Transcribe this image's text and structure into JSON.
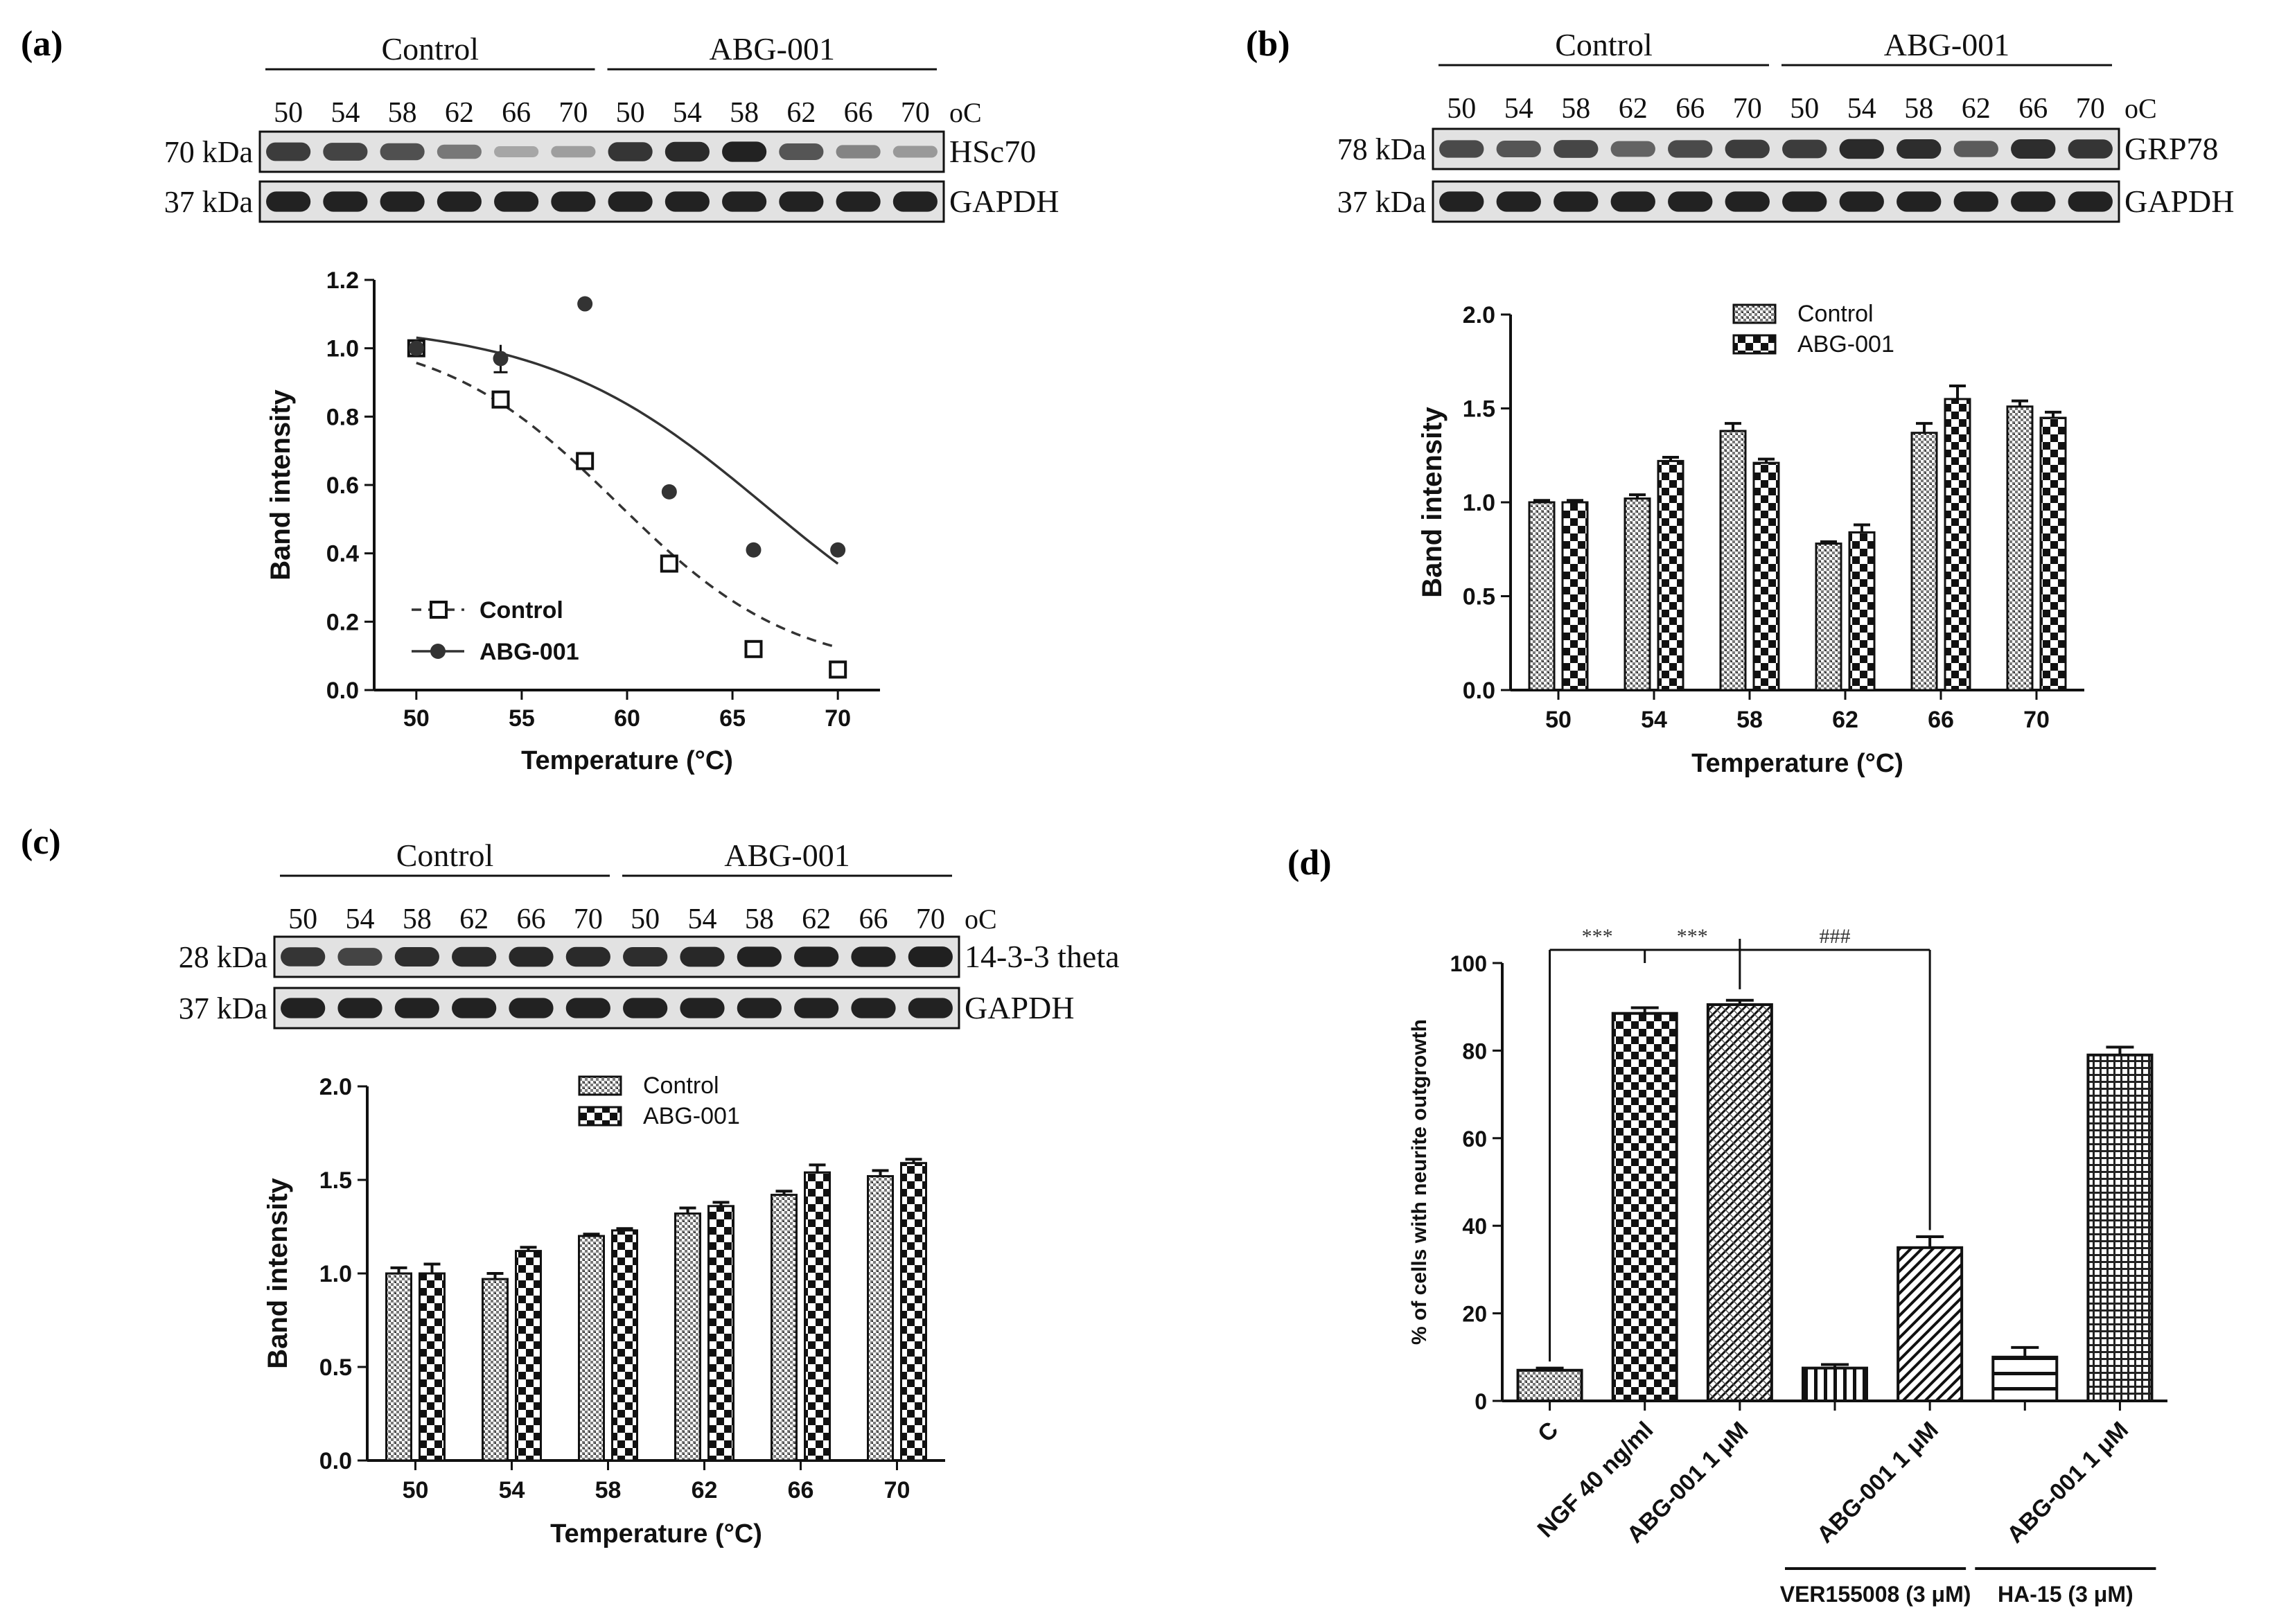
{
  "colors": {
    "ink": "#111111",
    "blot_bg": "#e2e2e2",
    "band": "#1a1a1a",
    "paper": "#ffffff"
  },
  "blots": [
    {
      "panel": "(a)",
      "group_labels": [
        "Control",
        "ABG-001"
      ],
      "temps": [
        "50",
        "54",
        "58",
        "62",
        "66",
        "70",
        "50",
        "54",
        "58",
        "62",
        "66",
        "70"
      ],
      "unit": "oC",
      "rows": [
        {
          "kda": "70 kDa",
          "protein": "HSc70",
          "intensity": [
            0.8,
            0.75,
            0.68,
            0.45,
            0.18,
            0.22,
            0.85,
            0.9,
            0.95,
            0.65,
            0.38,
            0.25
          ]
        },
        {
          "kda": "37 kDa",
          "protein": "GAPDH",
          "intensity": [
            0.95,
            0.95,
            0.95,
            0.95,
            0.95,
            0.95,
            0.95,
            0.95,
            0.95,
            0.95,
            0.95,
            0.95
          ]
        }
      ]
    },
    {
      "panel": "(b)",
      "group_labels": [
        "Control",
        "ABG-001"
      ],
      "temps": [
        "50",
        "54",
        "58",
        "62",
        "66",
        "70",
        "50",
        "54",
        "58",
        "62",
        "66",
        "70"
      ],
      "unit": "oC",
      "rows": [
        {
          "kda": "78 kDa",
          "protein": "GRP78",
          "intensity": [
            0.72,
            0.65,
            0.74,
            0.58,
            0.72,
            0.8,
            0.8,
            0.9,
            0.88,
            0.62,
            0.88,
            0.85
          ]
        },
        {
          "kda": "37 kDa",
          "protein": "GAPDH",
          "intensity": [
            0.95,
            0.95,
            0.95,
            0.95,
            0.95,
            0.95,
            0.95,
            0.95,
            0.95,
            0.95,
            0.95,
            0.95
          ]
        }
      ]
    },
    {
      "panel": "(c)",
      "group_labels": [
        "Control",
        "ABG-001"
      ],
      "temps": [
        "50",
        "54",
        "58",
        "62",
        "66",
        "70",
        "50",
        "54",
        "58",
        "62",
        "66",
        "70"
      ],
      "unit": "oC",
      "rows": [
        {
          "kda": "28 kDa",
          "protein": "14-3-3 theta",
          "intensity": [
            0.85,
            0.75,
            0.88,
            0.9,
            0.92,
            0.9,
            0.88,
            0.92,
            0.95,
            0.95,
            0.95,
            0.97
          ]
        },
        {
          "kda": "37 kDa",
          "protein": "GAPDH",
          "intensity": [
            0.95,
            0.95,
            0.95,
            0.95,
            0.95,
            0.95,
            0.95,
            0.95,
            0.95,
            0.95,
            0.95,
            0.95
          ]
        }
      ]
    }
  ],
  "chart_data": [
    {
      "panel": "(a)",
      "type": "scatter",
      "xlabel": "Temperature (°C)",
      "ylabel": "Band intensity",
      "xlim": [
        48,
        72
      ],
      "ylim": [
        0,
        1.2
      ],
      "xticks": [
        "50",
        "55",
        "60",
        "65",
        "70"
      ],
      "yticks": [
        "0.0",
        "0.2",
        "0.4",
        "0.6",
        "0.8",
        "1.0",
        "1.2"
      ],
      "legend_position": "bottom-left",
      "series": [
        {
          "name": "Control",
          "marker": "open-square",
          "line": "dashed",
          "x": [
            50,
            54,
            58,
            62,
            66,
            70
          ],
          "y": [
            1.0,
            0.85,
            0.67,
            0.37,
            0.12,
            0.06
          ],
          "fit": {
            "bottom": 0.05,
            "top": 1.05,
            "mid": 59.5,
            "slope": 0.24
          }
        },
        {
          "name": "ABG-001",
          "marker": "filled-circle",
          "line": "solid",
          "x": [
            50,
            54,
            58,
            62,
            66,
            70
          ],
          "y": [
            1.0,
            0.97,
            1.13,
            0.58,
            0.41,
            0.41
          ],
          "err": [
            0,
            0.04,
            0,
            0,
            0,
            0
          ],
          "fit": {
            "bottom": 0,
            "top": 1.075,
            "mid": 66.6,
            "slope": 0.19
          }
        }
      ]
    },
    {
      "panel": "(b)",
      "type": "bar",
      "xlabel": "Temperature (°C)",
      "ylabel": "Band intensity",
      "ylim": [
        0,
        2.0
      ],
      "yticks": [
        "0.0",
        "0.5",
        "1.0",
        "1.5",
        "2.0"
      ],
      "categories": [
        "50",
        "54",
        "58",
        "62",
        "66",
        "70"
      ],
      "legend_position": "top-center",
      "series": [
        {
          "name": "Control",
          "pattern": "dense",
          "values": [
            1.0,
            1.02,
            1.38,
            0.78,
            1.37,
            1.51
          ],
          "err": [
            0.01,
            0.02,
            0.04,
            0.01,
            0.05,
            0.03
          ]
        },
        {
          "name": "ABG-001",
          "pattern": "checker",
          "values": [
            1.0,
            1.22,
            1.21,
            0.84,
            1.55,
            1.45
          ],
          "err": [
            0.01,
            0.02,
            0.02,
            0.04,
            0.07,
            0.03
          ]
        }
      ]
    },
    {
      "panel": "(c)",
      "type": "bar",
      "xlabel": "Temperature (°C)",
      "ylabel": "Band intensity",
      "ylim": [
        0,
        2.0
      ],
      "yticks": [
        "0.0",
        "0.5",
        "1.0",
        "1.5",
        "2.0"
      ],
      "categories": [
        "50",
        "54",
        "58",
        "62",
        "66",
        "70"
      ],
      "legend_position": "top-center",
      "series": [
        {
          "name": "Control",
          "pattern": "dense",
          "values": [
            1.0,
            0.97,
            1.2,
            1.32,
            1.42,
            1.52
          ],
          "err": [
            0.03,
            0.03,
            0.01,
            0.03,
            0.02,
            0.03
          ]
        },
        {
          "name": "ABG-001",
          "pattern": "checker",
          "values": [
            1.0,
            1.12,
            1.23,
            1.36,
            1.54,
            1.59
          ],
          "err": [
            0.05,
            0.02,
            0.01,
            0.02,
            0.04,
            0.02
          ]
        }
      ]
    },
    {
      "panel": "(d)",
      "type": "bar",
      "xlabel": "",
      "ylabel": "% of cells with neurite outgrowth",
      "ylim": [
        0,
        100
      ],
      "yticks": [
        "0",
        "20",
        "40",
        "60",
        "80",
        "100"
      ],
      "categories": [
        "C",
        "NGF 40 ng/ml",
        "ABG-001 1 μM",
        "",
        "ABG-001 1 μM",
        "",
        "ABG-001 1 μM"
      ],
      "patterns": [
        "dense",
        "checker",
        "diag",
        "vlines",
        "rdiag",
        "hlines",
        "grid"
      ],
      "values": [
        7,
        88.5,
        90.5,
        7.5,
        35,
        10,
        79
      ],
      "err": [
        0.5,
        1.3,
        1.0,
        0.8,
        2.5,
        2.2,
        1.8
      ],
      "inhibitors": [
        "VER155008 (3 μM)",
        "HA-15 (3 μM)"
      ],
      "significance": [
        {
          "from": 0,
          "to": 1,
          "label": "***"
        },
        {
          "from": 1,
          "to": 2,
          "label": "***"
        },
        {
          "from": 2,
          "to": 4,
          "label": "###"
        }
      ]
    }
  ]
}
